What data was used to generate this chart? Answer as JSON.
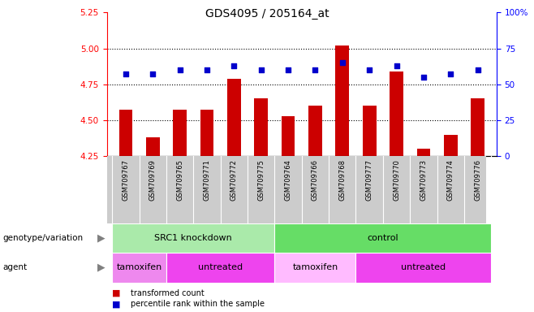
{
  "title": "GDS4095 / 205164_at",
  "samples": [
    "GSM709767",
    "GSM709769",
    "GSM709765",
    "GSM709771",
    "GSM709772",
    "GSM709775",
    "GSM709764",
    "GSM709766",
    "GSM709768",
    "GSM709777",
    "GSM709770",
    "GSM709773",
    "GSM709774",
    "GSM709776"
  ],
  "transformed_count": [
    4.57,
    4.38,
    4.57,
    4.57,
    4.79,
    4.65,
    4.53,
    4.6,
    5.02,
    4.6,
    4.84,
    4.3,
    4.4,
    4.65
  ],
  "percentile_rank_pct": [
    57,
    57,
    60,
    60,
    63,
    60,
    60,
    60,
    65,
    60,
    63,
    55,
    57,
    60
  ],
  "ylim_left": [
    4.25,
    5.25
  ],
  "ylim_right": [
    0,
    100
  ],
  "yticks_left": [
    4.25,
    4.5,
    4.75,
    5.0,
    5.25
  ],
  "yticks_right": [
    0,
    25,
    50,
    75,
    100
  ],
  "bar_color": "#cc0000",
  "dot_color": "#0000cc",
  "xticklabel_bg": "#cccccc",
  "genotype_groups": [
    {
      "label": "SRC1 knockdown",
      "start": 0,
      "end": 6,
      "color": "#aaeaaa"
    },
    {
      "label": "control",
      "start": 6,
      "end": 14,
      "color": "#66dd66"
    }
  ],
  "agent_groups": [
    {
      "label": "tamoxifen",
      "start": 0,
      "end": 2,
      "color": "#ee88ee"
    },
    {
      "label": "untreated",
      "start": 2,
      "end": 6,
      "color": "#ee44ee"
    },
    {
      "label": "tamoxifen",
      "start": 6,
      "end": 9,
      "color": "#ffaaff"
    },
    {
      "label": "untreated",
      "start": 9,
      "end": 14,
      "color": "#ee44ee"
    }
  ],
  "legend_items": [
    {
      "label": "transformed count",
      "color": "#cc0000"
    },
    {
      "label": "percentile rank within the sample",
      "color": "#0000cc"
    }
  ],
  "bar_width": 0.5,
  "base_value": 4.25
}
